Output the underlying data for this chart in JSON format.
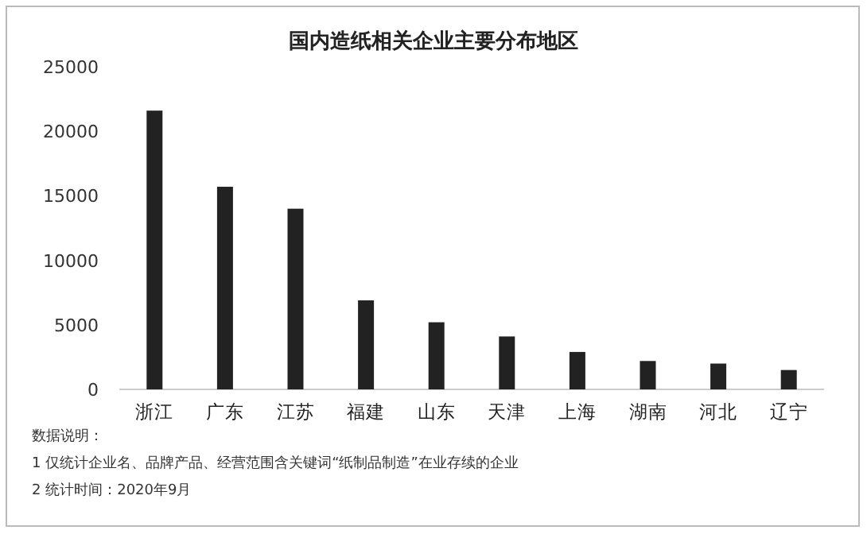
{
  "chart_data": {
    "type": "bar",
    "title": "国内造纸相关企业主要分布地区",
    "categories": [
      "浙江",
      "广东",
      "江苏",
      "福建",
      "山东",
      "天津",
      "上海",
      "湖南",
      "河北",
      "辽宁"
    ],
    "values": [
      21600,
      15700,
      14000,
      6900,
      5200,
      4100,
      2900,
      2200,
      2000,
      1500
    ],
    "color": "#222222",
    "ylim": [
      0,
      25000
    ],
    "yticks": [
      0,
      5000,
      10000,
      15000,
      20000,
      25000
    ],
    "grid": false,
    "annotations": [
      "数据说明：",
      "1 仅统计企业名、品牌产品、经营范围含关键词“纸制品制造”在业存续的企业",
      "2 统计时间：2020年9月"
    ]
  }
}
